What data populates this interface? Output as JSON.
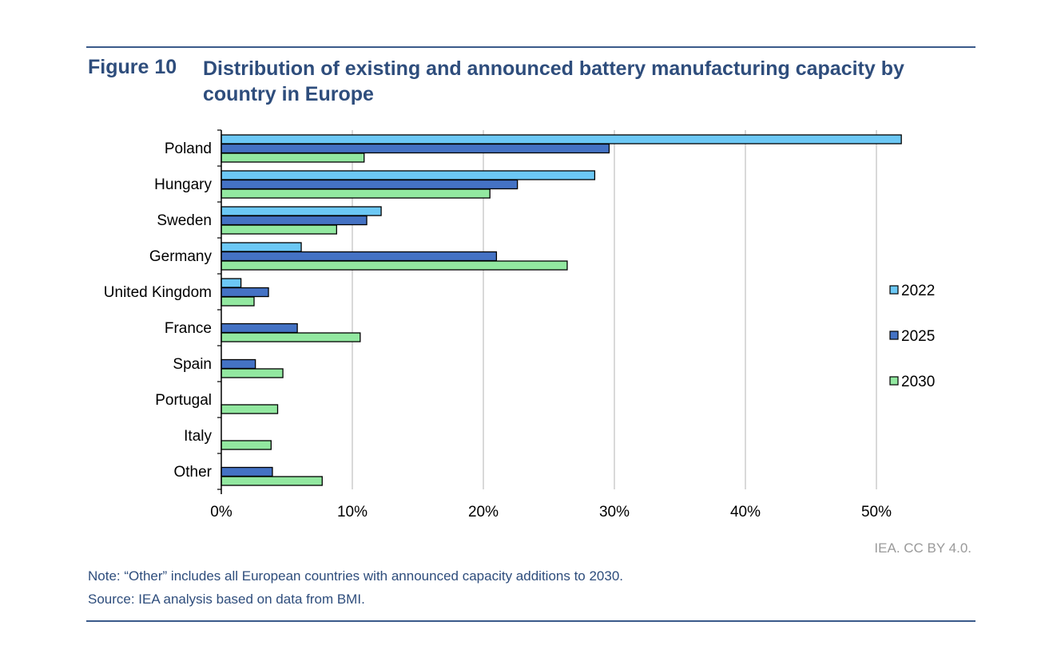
{
  "figure": {
    "number": "Figure 10",
    "title": "Distribution of existing and announced battery manufacturing capacity by country in Europe"
  },
  "credit": "IEA. CC BY 4.0.",
  "note": "Note: “Other” includes all European countries with announced capacity additions to 2030.",
  "source": "Source: IEA analysis based on data from BMI.",
  "chart_data": {
    "type": "bar",
    "orientation": "horizontal",
    "categories": [
      "Poland",
      "Hungary",
      "Sweden",
      "Germany",
      "United Kingdom",
      "France",
      "Spain",
      "Portugal",
      "Italy",
      "Other"
    ],
    "series": [
      {
        "name": "2022",
        "color": "#6cc8f5",
        "values": [
          51.9,
          28.5,
          12.2,
          6.1,
          1.5,
          0,
          0,
          0,
          0,
          0
        ]
      },
      {
        "name": "2025",
        "color": "#4472c4",
        "values": [
          29.6,
          22.6,
          11.1,
          21.0,
          3.6,
          5.8,
          2.6,
          0,
          0,
          3.9
        ]
      },
      {
        "name": "2030",
        "color": "#92e8a0",
        "values": [
          10.9,
          20.5,
          8.8,
          26.4,
          2.5,
          10.6,
          4.7,
          4.3,
          3.8,
          7.7
        ]
      }
    ],
    "xlim": [
      0,
      55
    ],
    "xticks": [
      0,
      10,
      20,
      30,
      40,
      50
    ],
    "xtick_labels": [
      "0%",
      "10%",
      "20%",
      "30%",
      "40%",
      "50%"
    ],
    "grid": true,
    "legend_position": "right"
  }
}
